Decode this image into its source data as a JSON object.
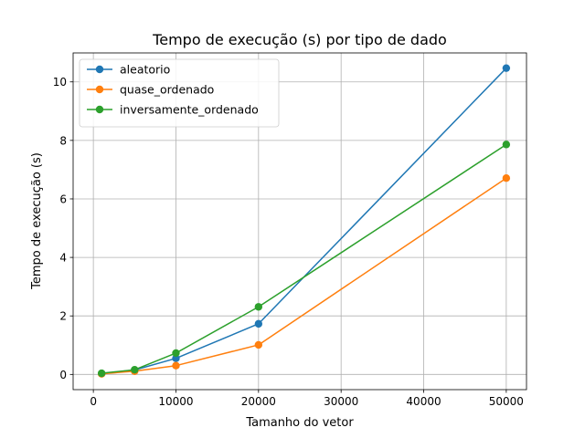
{
  "chart_data": {
    "type": "line",
    "title": "Tempo de execução (s) por tipo de dado",
    "xlabel": "Tamanho do vetor",
    "ylabel": "Tempo de execução (s)",
    "xlim": [
      -2450,
      52450
    ],
    "ylim": [
      -0.52,
      10.99
    ],
    "xticks": [
      0,
      10000,
      20000,
      30000,
      40000,
      50000
    ],
    "yticks": [
      0,
      2,
      4,
      6,
      8,
      10
    ],
    "grid": true,
    "legend_position": "top-left",
    "x": [
      1000,
      5000,
      10000,
      20000,
      50000
    ],
    "series": [
      {
        "name": "aleatorio",
        "color": "#1f77b4",
        "values": [
          0.03,
          0.15,
          0.55,
          1.73,
          10.47
        ]
      },
      {
        "name": "quase_ordenado",
        "color": "#ff7f0e",
        "values": [
          0.02,
          0.11,
          0.3,
          1.01,
          6.71
        ]
      },
      {
        "name": "inversamente_ordenado",
        "color": "#2ca02c",
        "values": [
          0.04,
          0.16,
          0.73,
          2.31,
          7.86
        ]
      }
    ]
  }
}
